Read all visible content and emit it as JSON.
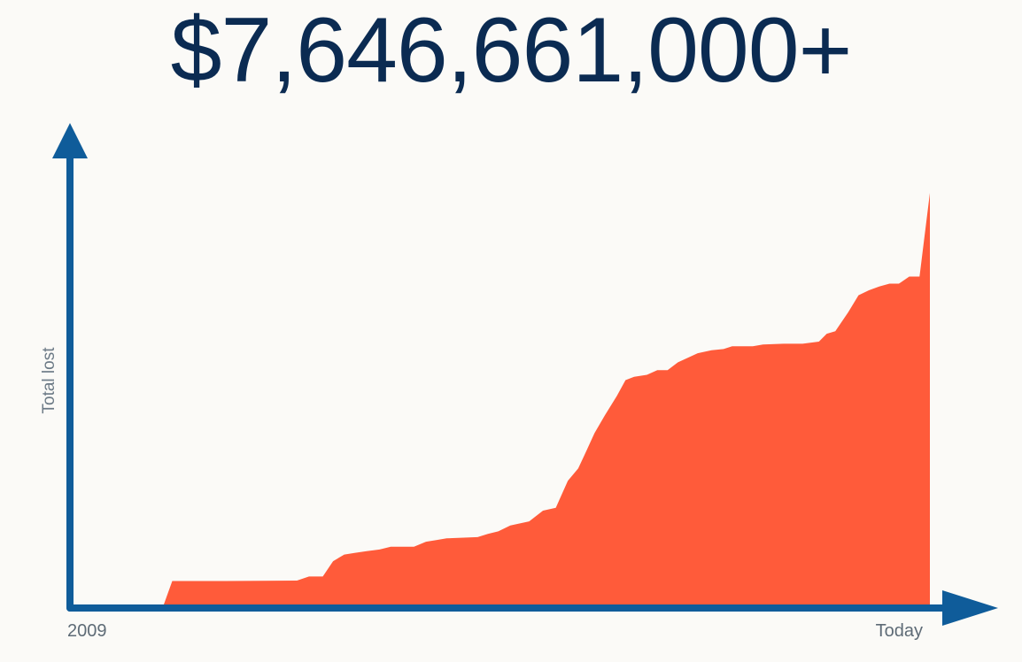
{
  "headline": "$7,646,661,000+",
  "chart_data": {
    "type": "area",
    "title": "$7,646,661,000+",
    "xlabel": "",
    "ylabel": "Total lost",
    "x_tick_labels": [
      "2009",
      "Today"
    ],
    "axis_color": "#0F5C9A",
    "fill_color": "#FF5B3A",
    "text_color": "#0B2B52",
    "grid": false,
    "legend": "none",
    "x_unit": "fraction of the time span from 2009 to today",
    "y_unit": "fraction of the headline total (7,646,661,000)",
    "x": [
      0.0,
      0.108,
      0.119,
      0.17,
      0.264,
      0.278,
      0.294,
      0.306,
      0.319,
      0.331,
      0.345,
      0.36,
      0.373,
      0.4,
      0.414,
      0.426,
      0.438,
      0.474,
      0.486,
      0.498,
      0.512,
      0.534,
      0.55,
      0.565,
      0.579,
      0.591,
      0.599,
      0.61,
      0.622,
      0.636,
      0.646,
      0.656,
      0.671,
      0.683,
      0.695,
      0.707,
      0.73,
      0.746,
      0.76,
      0.77,
      0.794,
      0.806,
      0.83,
      0.852,
      0.871,
      0.88,
      0.89,
      0.905,
      0.917,
      0.929,
      0.941,
      0.953,
      0.964,
      0.976,
      0.988,
      1.0
    ],
    "y": [
      0.0,
      0.0,
      0.063,
      0.063,
      0.064,
      0.074,
      0.074,
      0.111,
      0.127,
      0.131,
      0.135,
      0.139,
      0.146,
      0.146,
      0.158,
      0.162,
      0.166,
      0.169,
      0.177,
      0.183,
      0.197,
      0.207,
      0.233,
      0.24,
      0.305,
      0.335,
      0.37,
      0.42,
      0.463,
      0.51,
      0.548,
      0.556,
      0.561,
      0.572,
      0.572,
      0.591,
      0.613,
      0.62,
      0.623,
      0.63,
      0.63,
      0.634,
      0.636,
      0.636,
      0.641,
      0.66,
      0.666,
      0.712,
      0.753,
      0.765,
      0.774,
      0.781,
      0.781,
      0.798,
      0.798,
      1.0
    ]
  }
}
